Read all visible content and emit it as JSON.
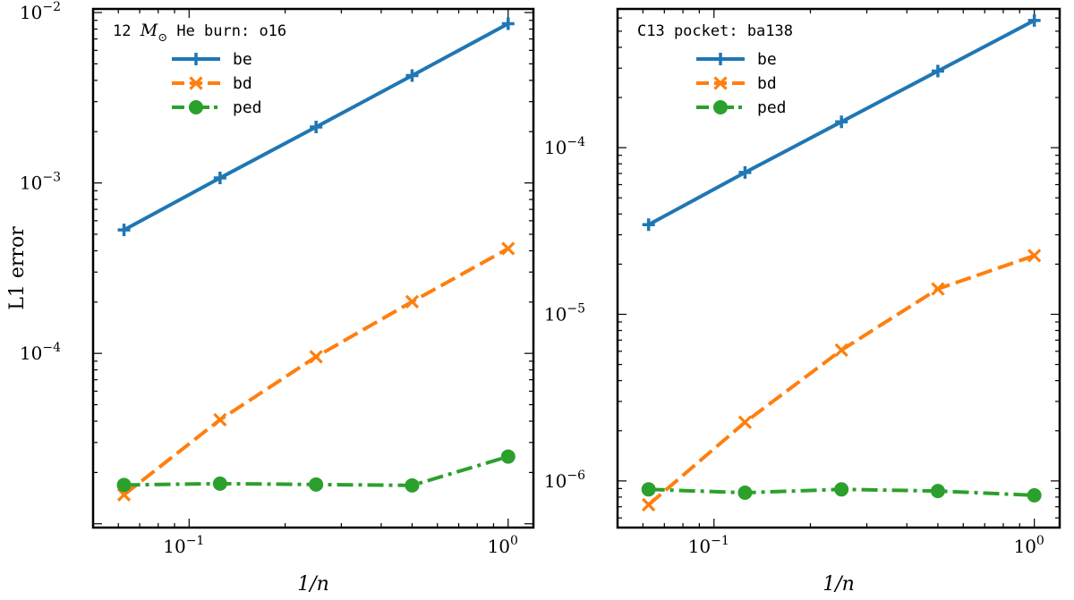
{
  "chart_data": [
    {
      "type": "line",
      "title_prefix": "12",
      "title_math": "M",
      "title_sub": "⊙",
      "title_suffix": "He burn: o16",
      "xlabel": "1/n",
      "ylabel": "L1 error",
      "xscale": "log",
      "yscale": "log",
      "xlim": [
        0.05,
        1.2
      ],
      "ylim": [
        9.5e-06,
        0.0105
      ],
      "xticks": [
        {
          "value": 0.1,
          "base": "10",
          "exp": "−1"
        },
        {
          "value": 1,
          "base": "10",
          "exp": "0"
        }
      ],
      "yticks": [
        {
          "value": 0.0001,
          "base": "10",
          "exp": "−4"
        },
        {
          "value": 0.001,
          "base": "10",
          "exp": "−3"
        },
        {
          "value": 0.01,
          "base": "10",
          "exp": "−2"
        }
      ],
      "x": [
        0.0625,
        0.125,
        0.25,
        0.5,
        1.0
      ],
      "series": [
        {
          "name": "be",
          "color": "#1f77b4",
          "dash": "solid",
          "marker": "plus",
          "values": [
            0.00053,
            0.00107,
            0.00213,
            0.00427,
            0.0086
          ]
        },
        {
          "name": "bd",
          "color": "#ff7f0e",
          "dash": "dashed",
          "marker": "x",
          "values": [
            1.48e-05,
            4.08e-05,
            9.55e-05,
            0.000201,
            0.000412
          ]
        },
        {
          "name": "ped",
          "color": "#2ca02c",
          "dash": "dashdot",
          "marker": "circle",
          "values": [
            1.69e-05,
            1.72e-05,
            1.7e-05,
            1.68e-05,
            2.48e-05
          ]
        }
      ],
      "legend_position": "top-left"
    },
    {
      "type": "line",
      "title_prefix": "C13 pocket: ba138",
      "title_math": "",
      "title_sub": "",
      "title_suffix": "",
      "xlabel": "1/n",
      "ylabel": "",
      "xscale": "log",
      "yscale": "log",
      "xlim": [
        0.05,
        1.2
      ],
      "ylim": [
        5.25e-07,
        0.00068
      ],
      "xticks": [
        {
          "value": 0.1,
          "base": "10",
          "exp": "−1"
        },
        {
          "value": 1,
          "base": "10",
          "exp": "0"
        }
      ],
      "yticks": [
        {
          "value": 1e-06,
          "base": "10",
          "exp": "−6"
        },
        {
          "value": 1e-05,
          "base": "10",
          "exp": "−5"
        },
        {
          "value": 0.0001,
          "base": "10",
          "exp": "−4"
        }
      ],
      "x": [
        0.0625,
        0.125,
        0.25,
        0.5,
        1.0
      ],
      "series": [
        {
          "name": "be",
          "color": "#1f77b4",
          "dash": "solid",
          "marker": "plus",
          "values": [
            3.45e-05,
            7.1e-05,
            0.000143,
            0.000288,
            0.00058
          ]
        },
        {
          "name": "bd",
          "color": "#ff7f0e",
          "dash": "dashed",
          "marker": "x",
          "values": [
            7.2e-07,
            2.25e-06,
            6.1e-06,
            1.42e-05,
            2.25e-05
          ]
        },
        {
          "name": "ped",
          "color": "#2ca02c",
          "dash": "dashdot",
          "marker": "circle",
          "values": [
            8.9e-07,
            8.5e-07,
            8.9e-07,
            8.7e-07,
            8.2e-07
          ]
        }
      ],
      "legend_position": "top-left"
    }
  ]
}
